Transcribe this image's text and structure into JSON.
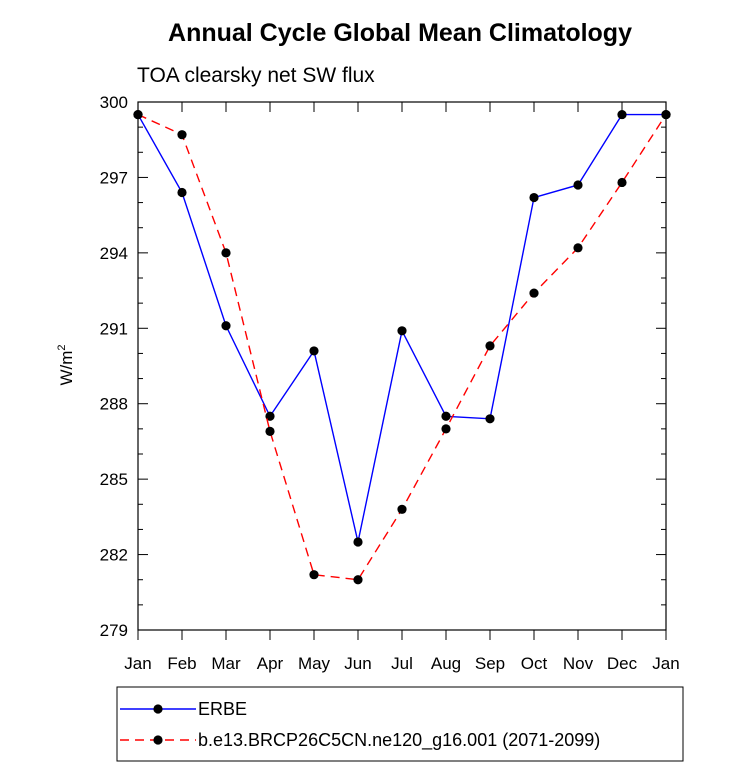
{
  "chart_data": {
    "type": "line",
    "title": "Annual Cycle Global Mean Climatology",
    "subtitle": "TOA clearsky net SW flux",
    "ylabel": "W/m",
    "ylabel_superscript": "2",
    "ylim": [
      279,
      300
    ],
    "yticks": [
      279,
      282,
      285,
      288,
      291,
      294,
      297,
      300
    ],
    "categories": [
      "Jan",
      "Feb",
      "Mar",
      "Apr",
      "May",
      "Jun",
      "Jul",
      "Aug",
      "Sep",
      "Oct",
      "Nov",
      "Dec",
      "Jan"
    ],
    "series": [
      {
        "name": "ERBE",
        "color": "#0000ff",
        "dash": "solid",
        "marker": "filled-circle",
        "values": [
          299.5,
          296.4,
          291.1,
          287.5,
          290.1,
          282.5,
          290.9,
          287.5,
          287.4,
          296.2,
          296.7,
          299.5,
          299.5
        ]
      },
      {
        "name": "b.e13.BRCP26C5CN.ne120_g16.001 (2071-2099)",
        "color": "#ff0000",
        "dash": "dashed",
        "marker": "filled-circle",
        "values": [
          299.5,
          298.7,
          294.0,
          286.9,
          281.2,
          281.0,
          283.8,
          287.0,
          290.3,
          292.4,
          294.2,
          296.8,
          299.5
        ]
      }
    ],
    "grid": false,
    "legend": "bottom"
  }
}
